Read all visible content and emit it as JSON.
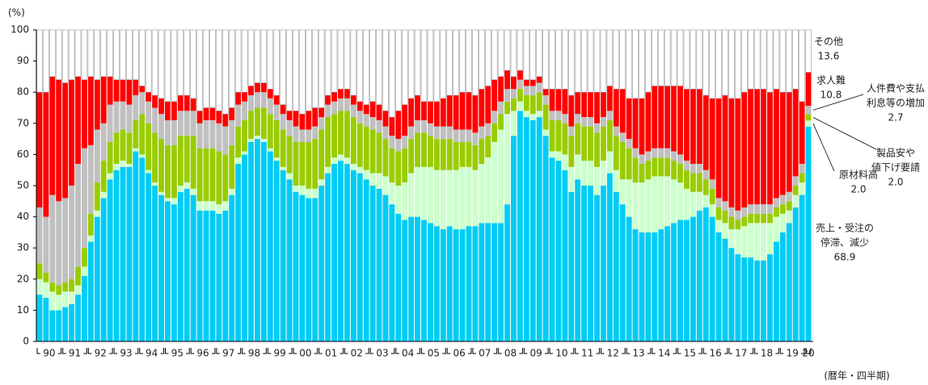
{
  "chart_data": {
    "type": "stacked_bar",
    "y_axis_label": "(%)",
    "x_axis_label": "(暦年・四半期)",
    "ylim": [
      0,
      100
    ],
    "yticks": [
      0,
      10,
      20,
      30,
      40,
      50,
      60,
      70,
      80,
      90,
      100
    ],
    "categories": [
      "90",
      null,
      null,
      null,
      "91",
      null,
      null,
      null,
      "92",
      null,
      null,
      null,
      "93",
      null,
      null,
      null,
      "94",
      null,
      null,
      null,
      "95",
      null,
      null,
      null,
      "96",
      null,
      null,
      null,
      "97",
      null,
      null,
      null,
      "98",
      null,
      null,
      null,
      "99",
      null,
      null,
      null,
      "00",
      null,
      null,
      null,
      "01",
      null,
      null,
      null,
      "02",
      null,
      null,
      null,
      "03",
      null,
      null,
      null,
      "04",
      null,
      null,
      null,
      "05",
      null,
      null,
      null,
      "06",
      null,
      null,
      null,
      "07",
      null,
      null,
      null,
      "08",
      null,
      null,
      null,
      "09",
      null,
      null,
      null,
      "10",
      null,
      null,
      null,
      "11",
      null,
      null,
      null,
      "12",
      null,
      null,
      null,
      "13",
      null,
      null,
      null,
      "14",
      null,
      null,
      null,
      "15",
      null,
      null,
      null,
      "16",
      null,
      null,
      null,
      "17",
      null,
      null,
      null,
      "18",
      null,
      null,
      null,
      "19",
      null,
      null,
      null,
      "20"
    ],
    "series": [
      {
        "name": [
          "売上・受注の",
          "停滞、減少"
        ],
        "color": "#00ccf5",
        "values": [
          15,
          14,
          10,
          10,
          11,
          12,
          15,
          21,
          32,
          40,
          46,
          52,
          55,
          56,
          56,
          61,
          59,
          54,
          50,
          47,
          45,
          44,
          48,
          49,
          47,
          42,
          42,
          42,
          41,
          42,
          47,
          57,
          60,
          64,
          65,
          64,
          61,
          58,
          55,
          52,
          48,
          47,
          46,
          46,
          50,
          54,
          57,
          58,
          57,
          55,
          54,
          52,
          50,
          49,
          47,
          44,
          41,
          39,
          40,
          40,
          39,
          38,
          37,
          36,
          37,
          36,
          36,
          37,
          37,
          38,
          38,
          38,
          38,
          44,
          66,
          74,
          72,
          71,
          72,
          66,
          59,
          58,
          55,
          48,
          52,
          50,
          50,
          47,
          50,
          54,
          48,
          44,
          40,
          36,
          35,
          35,
          35,
          36,
          37,
          38,
          39,
          39,
          40,
          42,
          43,
          40,
          35,
          33,
          30,
          28,
          27,
          27,
          26,
          26,
          28,
          32,
          35,
          38,
          43,
          47,
          68.9
        ]
      },
      {
        "name": [
          "原材料高"
        ],
        "color": "#ccffcc",
        "values": [
          5,
          5,
          6,
          5,
          5,
          4,
          3,
          3,
          2,
          2,
          2,
          2,
          2,
          2,
          1,
          1,
          1,
          1,
          1,
          1,
          1,
          2,
          2,
          2,
          2,
          3,
          3,
          3,
          3,
          3,
          2,
          2,
          1,
          1,
          1,
          1,
          1,
          1,
          1,
          2,
          2,
          3,
          3,
          3,
          2,
          2,
          2,
          2,
          2,
          2,
          2,
          3,
          4,
          5,
          6,
          7,
          9,
          12,
          14,
          16,
          17,
          18,
          18,
          19,
          18,
          19,
          20,
          19,
          18,
          19,
          21,
          26,
          30,
          29,
          8,
          3,
          2,
          2,
          2,
          2,
          2,
          3,
          5,
          8,
          8,
          8,
          8,
          9,
          8,
          7,
          7,
          8,
          12,
          15,
          16,
          17,
          18,
          17,
          16,
          14,
          12,
          10,
          8,
          6,
          4,
          4,
          4,
          5,
          6,
          8,
          10,
          11,
          12,
          12,
          10,
          8,
          6,
          4,
          4,
          4,
          2
        ],
        "value_labels": [
          null,
          null,
          null,
          null,
          null,
          null,
          null,
          null,
          null,
          null,
          null,
          null,
          null,
          null,
          null,
          null,
          null,
          null,
          null,
          null,
          null,
          null,
          null,
          null,
          null,
          null,
          null,
          null,
          null,
          null,
          null,
          null,
          null,
          null,
          null,
          null,
          null,
          null,
          null,
          null,
          null,
          null,
          null,
          null,
          null,
          null,
          null,
          null,
          null,
          null,
          null,
          null,
          null,
          null,
          null,
          null,
          null,
          null,
          null,
          null,
          null,
          null,
          null,
          null,
          null,
          null,
          null,
          null,
          null,
          null,
          null,
          null,
          null,
          null,
          null,
          null,
          null,
          null,
          null,
          null,
          null,
          null,
          null,
          null,
          null,
          null,
          null,
          null,
          null,
          null,
          null,
          null,
          null,
          null,
          null,
          null,
          null,
          null,
          null,
          null,
          null,
          null,
          null,
          null,
          null,
          null,
          null,
          null,
          null,
          null,
          null,
          null,
          null,
          null,
          null,
          null,
          null,
          null,
          null,
          null,
          "2.0"
        ]
      },
      {
        "name": [
          "製品安や",
          "値下げ要請"
        ],
        "color": "#99cc00",
        "values": [
          5,
          3,
          3,
          3,
          3,
          4,
          6,
          6,
          7,
          9,
          10,
          10,
          10,
          10,
          10,
          9,
          13,
          15,
          16,
          17,
          17,
          17,
          16,
          15,
          17,
          17,
          17,
          17,
          17,
          15,
          14,
          10,
          10,
          9,
          9,
          10,
          11,
          12,
          12,
          12,
          14,
          14,
          15,
          16,
          16,
          16,
          14,
          14,
          15,
          15,
          14,
          14,
          14,
          13,
          12,
          11,
          11,
          11,
          11,
          11,
          11,
          10,
          10,
          10,
          10,
          9,
          8,
          8,
          8,
          8,
          7,
          6,
          5,
          4,
          4,
          4,
          5,
          6,
          6,
          8,
          10,
          10,
          10,
          10,
          10,
          11,
          11,
          11,
          11,
          10,
          11,
          12,
          10,
          8,
          6,
          6,
          6,
          6,
          6,
          6,
          6,
          6,
          6,
          6,
          5,
          5,
          4,
          4,
          4,
          3,
          3,
          3,
          3,
          3,
          3,
          3,
          3,
          3,
          3,
          3,
          2
        ],
        "value_labels": [
          null,
          null,
          null,
          null,
          null,
          null,
          null,
          null,
          null,
          null,
          null,
          null,
          null,
          null,
          null,
          null,
          null,
          null,
          null,
          null,
          null,
          null,
          null,
          null,
          null,
          null,
          null,
          null,
          null,
          null,
          null,
          null,
          null,
          null,
          null,
          null,
          null,
          null,
          null,
          null,
          null,
          null,
          null,
          null,
          null,
          null,
          null,
          null,
          null,
          null,
          null,
          null,
          null,
          null,
          null,
          null,
          null,
          null,
          null,
          null,
          null,
          null,
          null,
          null,
          null,
          null,
          null,
          null,
          null,
          null,
          null,
          null,
          null,
          null,
          null,
          null,
          null,
          null,
          null,
          null,
          null,
          null,
          null,
          null,
          null,
          null,
          null,
          null,
          null,
          null,
          null,
          null,
          null,
          null,
          null,
          null,
          null,
          null,
          null,
          null,
          null,
          null,
          null,
          null,
          null,
          null,
          null,
          null,
          null,
          null,
          null,
          null,
          null,
          null,
          null,
          null,
          null,
          null,
          null,
          null,
          "2.0"
        ]
      },
      {
        "name": [
          "人件費や支払",
          "利息等の増加"
        ],
        "color": "#c0c0c0",
        "values": [
          18,
          18,
          28,
          27,
          27,
          30,
          33,
          32,
          22,
          17,
          12,
          12,
          10,
          9,
          9,
          8,
          7,
          7,
          8,
          8,
          8,
          8,
          8,
          8,
          8,
          8,
          9,
          9,
          9,
          9,
          8,
          7,
          6,
          5,
          5,
          5,
          5,
          5,
          5,
          5,
          5,
          4,
          4,
          4,
          4,
          4,
          4,
          4,
          4,
          4,
          4,
          4,
          4,
          4,
          4,
          4,
          4,
          4,
          4,
          4,
          4,
          4,
          4,
          4,
          4,
          4,
          4,
          4,
          4,
          4,
          4,
          4,
          4,
          4,
          3,
          3,
          3,
          3,
          3,
          3,
          3,
          3,
          3,
          3,
          3,
          3,
          3,
          3,
          3,
          3,
          3,
          3,
          3,
          3,
          3,
          3,
          3,
          3,
          3,
          3,
          3,
          3,
          3,
          3,
          3,
          3,
          3,
          3,
          3,
          3,
          3,
          3,
          3,
          3,
          3,
          3,
          3,
          3,
          3,
          3,
          2.7
        ]
      },
      {
        "name": [
          "求人難"
        ],
        "color": "#ff0000",
        "values": [
          37,
          40,
          38,
          39,
          37,
          34,
          28,
          22,
          22,
          16,
          15,
          9,
          7,
          7,
          8,
          5,
          2,
          3,
          4,
          5,
          6,
          6,
          5,
          5,
          4,
          4,
          4,
          4,
          4,
          4,
          4,
          4,
          3,
          3,
          3,
          3,
          3,
          3,
          3,
          3,
          5,
          5,
          6,
          6,
          3,
          3,
          3,
          3,
          3,
          3,
          3,
          3,
          5,
          5,
          5,
          6,
          9,
          10,
          9,
          8,
          6,
          7,
          8,
          9,
          10,
          11,
          12,
          12,
          12,
          12,
          12,
          10,
          8,
          6,
          4,
          3,
          2,
          2,
          2,
          2,
          7,
          7,
          8,
          10,
          7,
          8,
          8,
          10,
          8,
          8,
          12,
          14,
          13,
          16,
          18,
          19,
          20,
          20,
          20,
          21,
          22,
          23,
          24,
          24,
          24,
          26,
          32,
          34,
          35,
          36,
          37,
          37,
          37,
          37,
          36,
          35,
          33,
          32,
          28,
          20,
          10.8
        ]
      },
      {
        "name": [
          "その他"
        ],
        "color": "#ffffff",
        "values": [
          20,
          20,
          15,
          16,
          17,
          16,
          15,
          16,
          15,
          16,
          15,
          15,
          16,
          16,
          16,
          16,
          18,
          20,
          21,
          22,
          23,
          23,
          21,
          21,
          22,
          26,
          25,
          25,
          26,
          27,
          25,
          20,
          20,
          18,
          17,
          17,
          19,
          21,
          24,
          26,
          26,
          27,
          26,
          25,
          25,
          21,
          20,
          19,
          19,
          21,
          23,
          24,
          23,
          24,
          26,
          28,
          26,
          24,
          22,
          21,
          23,
          23,
          23,
          22,
          21,
          21,
          20,
          20,
          21,
          19,
          18,
          16,
          15,
          13,
          15,
          13,
          16,
          16,
          15,
          19,
          19,
          19,
          19,
          21,
          20,
          20,
          20,
          20,
          20,
          18,
          19,
          19,
          22,
          22,
          22,
          20,
          18,
          18,
          18,
          18,
          18,
          19,
          19,
          19,
          21,
          22,
          22,
          21,
          22,
          22,
          20,
          19,
          19,
          19,
          20,
          19,
          20,
          20,
          19,
          23,
          13.6
        ]
      }
    ]
  }
}
